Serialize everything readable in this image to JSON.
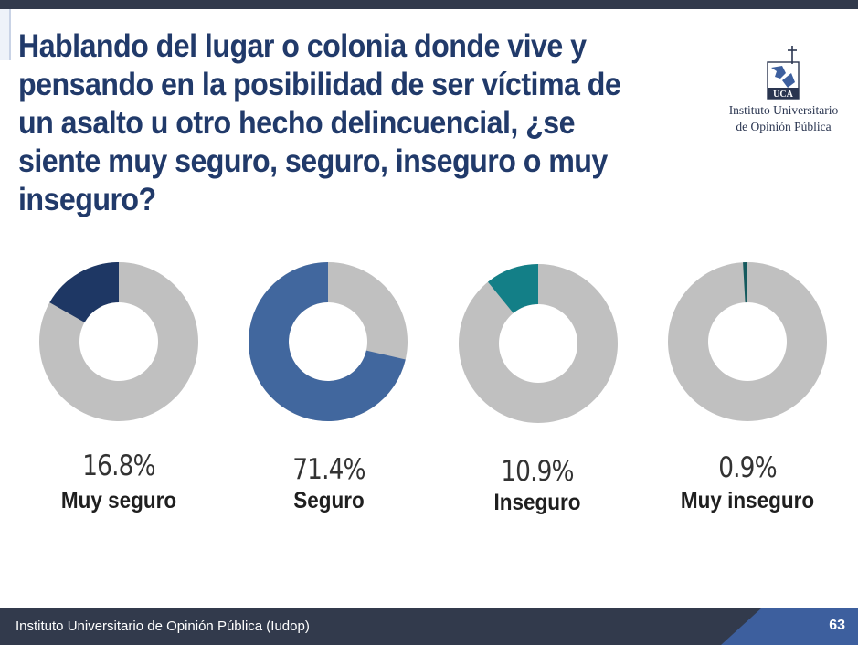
{
  "title": "Hablando del lugar o colonia donde vive y pensando en la posibilidad de ser víctima de un asalto u otro hecho delincuencial, ¿se siente muy seguro, seguro, inseguro o muy inseguro?",
  "logo": {
    "line1": "Instituto Universitario",
    "line2": "de Opinión Pública",
    "mark_text": "UCA"
  },
  "chart_data": {
    "type": "pie",
    "variant": "donut-small-multiples",
    "categories": [
      "Muy seguro",
      "Seguro",
      "Inseguro",
      "Muy inseguro"
    ],
    "values": [
      16.8,
      71.4,
      10.9,
      0.9
    ],
    "labels": [
      "16.8%",
      "71.4%",
      "10.9%",
      "0.9%"
    ],
    "colors": [
      "#1e3764",
      "#41679e",
      "#137f87",
      "#155a5e"
    ],
    "remainder_color": "#c0c0c0"
  },
  "footer": {
    "text": "Instituto Universitario de Opinión Pública (Iudop)",
    "page": "63"
  }
}
